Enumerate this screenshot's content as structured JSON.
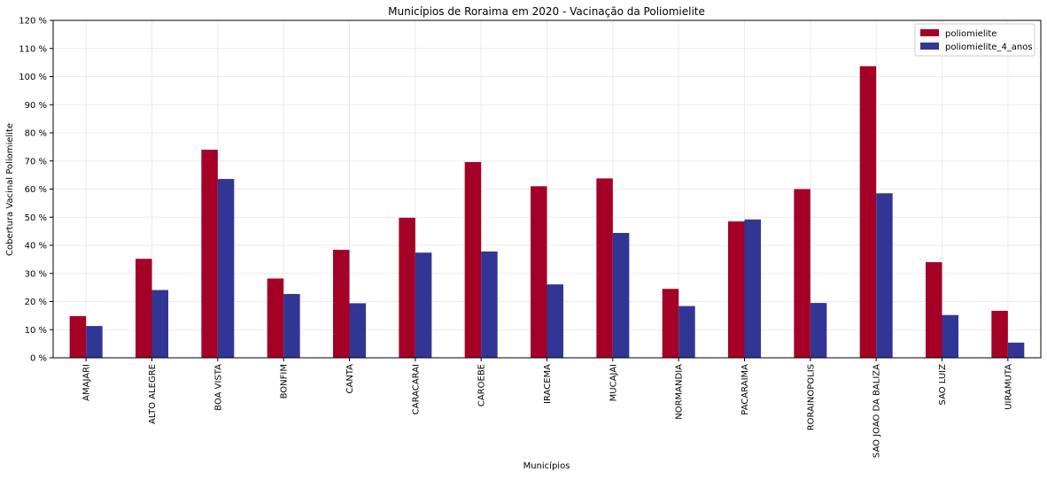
{
  "chart_data": {
    "type": "bar",
    "title": "Municípios de Roraima em 2020 - Vacinação da Poliomielite",
    "xlabel": "Municípios",
    "ylabel": "Cobertura Vacinal Poliomielite",
    "ylim": [
      0,
      120
    ],
    "ytick_step": 10,
    "ytick_suffix": " %",
    "grid": true,
    "legend_position": "top-right",
    "categories": [
      "AMAJARI",
      "ALTO ALEGRE",
      "BOA VISTA",
      "BONFIM",
      "CANTA",
      "CARACARAI",
      "CAROEBE",
      "IRACEMA",
      "MUCAJAI",
      "NORMANDIA",
      "PACARAIMA",
      "RORAINOPOLIS",
      "SAO JOAO DA BALIZA",
      "SAO LUIZ",
      "UIRAMUTA"
    ],
    "series": [
      {
        "name": "poliomielite",
        "color": "#a50026",
        "values": [
          14.8,
          35.2,
          74.0,
          28.2,
          38.4,
          49.8,
          69.6,
          61.0,
          63.8,
          24.5,
          48.5,
          60.0,
          103.7,
          34.0,
          16.7
        ]
      },
      {
        "name": "poliomielite_4_anos",
        "color": "#313695",
        "values": [
          11.3,
          24.1,
          63.6,
          22.7,
          19.4,
          37.4,
          37.8,
          26.1,
          44.4,
          18.4,
          49.2,
          19.5,
          58.5,
          15.2,
          5.4
        ]
      }
    ]
  }
}
